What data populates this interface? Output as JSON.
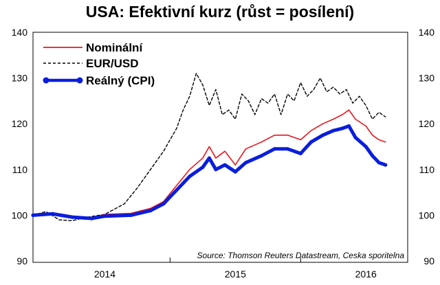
{
  "chart_data": {
    "type": "line",
    "title": "USA: Efektivní kurz (růst = posílení)",
    "source": "Source: Thomson Reuters Datastream, Ceska sporitelna",
    "ylim": [
      90,
      140
    ],
    "xlim": [
      2013.45,
      2016.32
    ],
    "y_ticks": [
      "140",
      "130",
      "120",
      "110",
      "100",
      "90"
    ],
    "x_ticks": [
      {
        "label": "2014",
        "x": 2014.0
      },
      {
        "label": "2015",
        "x": 2015.0
      },
      {
        "label": "2016",
        "x": 2016.0
      }
    ],
    "x_boundaries": [
      2014.5,
      2015.5
    ],
    "grid": false,
    "legend_position": "top-left",
    "series": [
      {
        "name": "Nominální",
        "color": "#e8141c",
        "style": "solid",
        "points": [
          [
            2013.45,
            100.0
          ],
          [
            2013.6,
            100.5
          ],
          [
            2013.75,
            99.5
          ],
          [
            2013.9,
            99.4
          ],
          [
            2014.0,
            100.2
          ],
          [
            2014.2,
            100.4
          ],
          [
            2014.35,
            101.5
          ],
          [
            2014.45,
            103.0
          ],
          [
            2014.55,
            106.5
          ],
          [
            2014.65,
            110.0
          ],
          [
            2014.75,
            112.5
          ],
          [
            2014.8,
            115.0
          ],
          [
            2014.85,
            112.5
          ],
          [
            2014.92,
            114.0
          ],
          [
            2015.0,
            111.0
          ],
          [
            2015.08,
            114.5
          ],
          [
            2015.2,
            116.0
          ],
          [
            2015.3,
            117.5
          ],
          [
            2015.4,
            117.5
          ],
          [
            2015.5,
            116.5
          ],
          [
            2015.58,
            118.5
          ],
          [
            2015.67,
            120.0
          ],
          [
            2015.75,
            121.0
          ],
          [
            2015.82,
            122.0
          ],
          [
            2015.87,
            123.0
          ],
          [
            2015.92,
            121.0
          ],
          [
            2016.0,
            119.5
          ],
          [
            2016.05,
            117.5
          ],
          [
            2016.1,
            116.5
          ],
          [
            2016.15,
            116.0
          ]
        ]
      },
      {
        "name": "EUR/USD",
        "color": "#000000",
        "style": "dashed",
        "points": [
          [
            2013.45,
            100.0
          ],
          [
            2013.55,
            100.8
          ],
          [
            2013.65,
            99.0
          ],
          [
            2013.75,
            98.8
          ],
          [
            2013.85,
            99.5
          ],
          [
            2014.0,
            100.2
          ],
          [
            2014.15,
            102.5
          ],
          [
            2014.25,
            106.0
          ],
          [
            2014.35,
            110.0
          ],
          [
            2014.45,
            114.0
          ],
          [
            2014.55,
            119.0
          ],
          [
            2014.6,
            123.0
          ],
          [
            2014.65,
            126.0
          ],
          [
            2014.7,
            131.0
          ],
          [
            2014.75,
            128.5
          ],
          [
            2014.8,
            124.0
          ],
          [
            2014.85,
            127.5
          ],
          [
            2014.9,
            122.0
          ],
          [
            2014.95,
            123.0
          ],
          [
            2015.0,
            121.0
          ],
          [
            2015.05,
            126.5
          ],
          [
            2015.1,
            125.0
          ],
          [
            2015.15,
            122.0
          ],
          [
            2015.2,
            125.5
          ],
          [
            2015.25,
            124.5
          ],
          [
            2015.3,
            126.5
          ],
          [
            2015.35,
            122.0
          ],
          [
            2015.4,
            126.5
          ],
          [
            2015.45,
            125.0
          ],
          [
            2015.5,
            129.0
          ],
          [
            2015.55,
            126.0
          ],
          [
            2015.6,
            127.5
          ],
          [
            2015.65,
            130.0
          ],
          [
            2015.7,
            127.0
          ],
          [
            2015.75,
            128.0
          ],
          [
            2015.8,
            126.5
          ],
          [
            2015.85,
            127.5
          ],
          [
            2015.9,
            124.5
          ],
          [
            2015.95,
            126.0
          ],
          [
            2016.0,
            124.0
          ],
          [
            2016.05,
            121.0
          ],
          [
            2016.1,
            122.5
          ],
          [
            2016.15,
            121.5
          ]
        ]
      },
      {
        "name": "Reálný (CPI)",
        "color": "#0a1edc",
        "style": "thick",
        "points": [
          [
            2013.45,
            100.0
          ],
          [
            2013.6,
            100.3
          ],
          [
            2013.75,
            99.6
          ],
          [
            2013.9,
            99.3
          ],
          [
            2014.0,
            99.8
          ],
          [
            2014.2,
            100.0
          ],
          [
            2014.35,
            101.0
          ],
          [
            2014.45,
            102.5
          ],
          [
            2014.55,
            105.5
          ],
          [
            2014.65,
            108.5
          ],
          [
            2014.75,
            110.5
          ],
          [
            2014.8,
            112.5
          ],
          [
            2014.85,
            110.0
          ],
          [
            2014.92,
            111.0
          ],
          [
            2015.0,
            109.5
          ],
          [
            2015.08,
            111.5
          ],
          [
            2015.2,
            113.0
          ],
          [
            2015.3,
            114.5
          ],
          [
            2015.4,
            114.5
          ],
          [
            2015.5,
            113.5
          ],
          [
            2015.58,
            116.0
          ],
          [
            2015.67,
            117.5
          ],
          [
            2015.75,
            118.5
          ],
          [
            2015.82,
            119.0
          ],
          [
            2015.87,
            119.5
          ],
          [
            2015.92,
            117.0
          ],
          [
            2016.0,
            115.0
          ],
          [
            2016.05,
            113.0
          ],
          [
            2016.1,
            111.5
          ],
          [
            2016.15,
            111.0
          ]
        ]
      }
    ]
  }
}
